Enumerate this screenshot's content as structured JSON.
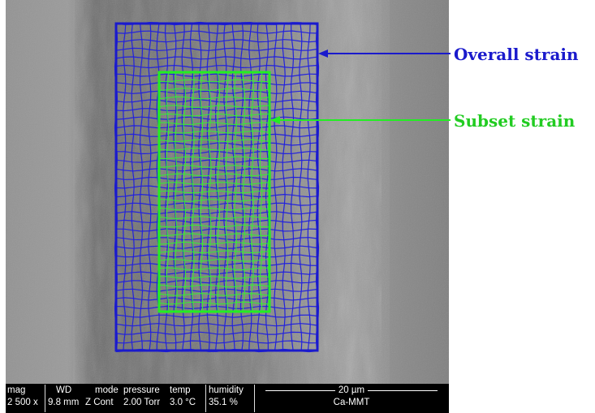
{
  "annotations": {
    "overall": {
      "label": "Overall strain",
      "color": "#1a1acc"
    },
    "subset": {
      "label": "Subset strain",
      "color": "#22ee22"
    }
  },
  "databar": {
    "mag": {
      "label": "mag",
      "value": "2 500 x"
    },
    "wd": {
      "label": "WD",
      "value": "9.8 mm"
    },
    "mode": {
      "label": "mode",
      "value": "Z Cont"
    },
    "pressure": {
      "label": "pressure",
      "value": "2.00 Torr"
    },
    "temp": {
      "label": "temp",
      "value": "3.0 °C"
    },
    "humidity": {
      "label": "humidity",
      "value": "35.1 %"
    },
    "scale": "20 µm",
    "sample": "Ca-MMT"
  }
}
